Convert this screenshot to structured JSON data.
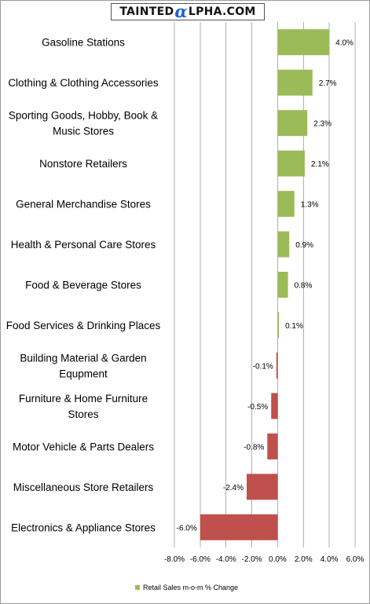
{
  "logo": {
    "left": "TAINTED",
    "alpha": "α",
    "right": "LPHA.COM"
  },
  "colors": {
    "positive": "#9bbb59",
    "negative": "#c0504d",
    "grid": "#b0b0b0"
  },
  "chart_data": {
    "type": "bar",
    "orientation": "horizontal",
    "title": "",
    "xlabel": "",
    "ylabel": "",
    "xlim": [
      -8,
      6
    ],
    "grid": true,
    "legend_position": "bottom",
    "categories": [
      "Gasoline Stations",
      "Clothing & Clothing Accessories",
      "Sporting Goods, Hobby, Book & Music Stores",
      "Nonstore Retailers",
      "General Merchandise Stores",
      "Health & Personal Care Stores",
      "Food & Beverage Stores",
      "Food Services & Drinking Places",
      "Building Material & Garden Equpment",
      "Furniture & Home Furniture Stores",
      "Motor Vehicle & Parts Dealers",
      "Miscellaneous Store Retailers",
      "Electronics & Appliance Stores"
    ],
    "category_lines": [
      [
        "Gasoline Stations"
      ],
      [
        "Clothing & Clothing Accessories"
      ],
      [
        "Sporting Goods, Hobby, Book &",
        "Music Stores"
      ],
      [
        "Nonstore Retailers"
      ],
      [
        "General Merchandise Stores"
      ],
      [
        "Health & Personal Care Stores"
      ],
      [
        "Food & Beverage Stores"
      ],
      [
        "Food Services & Drinking Places"
      ],
      [
        "Building Material & Garden",
        "Equpment"
      ],
      [
        "Furniture & Home Furniture",
        "Stores"
      ],
      [
        "Motor Vehicle & Parts Dealers"
      ],
      [
        "Miscellaneous Store Retailers"
      ],
      [
        "Electronics & Appliance Stores"
      ]
    ],
    "series": [
      {
        "name": "Retail Sales m-o-m % Change",
        "values": [
          4.0,
          2.7,
          2.3,
          2.1,
          1.3,
          0.9,
          0.8,
          0.1,
          -0.1,
          -0.5,
          -0.8,
          -2.4,
          -6.0
        ],
        "data_labels": [
          "4.0%",
          "2.7%",
          "2.3%",
          "2.1%",
          "1.3%",
          "0.9%",
          "0.8%",
          "0.1%",
          "-0.1%",
          "-0.5%",
          "-0.8%",
          "-2.4%",
          "-6.0%"
        ]
      }
    ],
    "tick_values": [
      -8,
      -6,
      -4,
      -2,
      0,
      2,
      4,
      6
    ],
    "tick_labels": [
      "-8.0%",
      "-6.0%",
      "-4.0%",
      "-2.0%",
      "0.0%",
      "2.0%",
      "4.0%",
      "6.0%"
    ]
  }
}
